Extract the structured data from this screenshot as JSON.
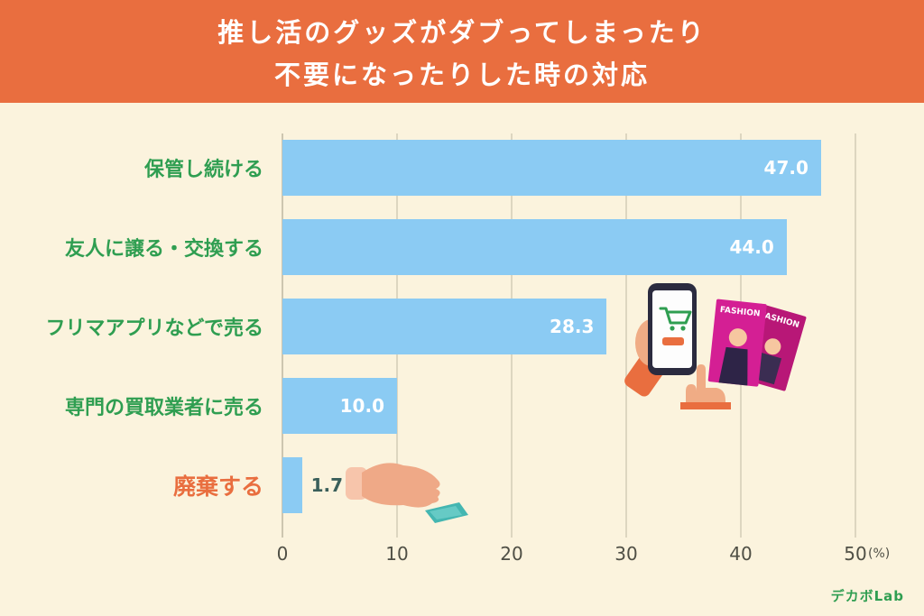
{
  "header": {
    "title_line1": "推し活のグッズがダブってしまったり",
    "title_line2": "不要になったりした時の対応",
    "bg_color": "#e96e3f",
    "text_color": "#ffffff"
  },
  "chart_data": {
    "type": "bar",
    "orientation": "horizontal",
    "categories": [
      "保管し続ける",
      "友人に譲る・交換する",
      "フリマアプリなどで売る",
      "専門の買取業者に売る",
      "廃棄する"
    ],
    "values": [
      47.0,
      44.0,
      28.3,
      10.0,
      1.7
    ],
    "value_labels": [
      "47.0",
      "44.0",
      "28.3",
      "10.0",
      "1.7"
    ],
    "xlim": [
      0,
      50
    ],
    "ticks": [
      0,
      10,
      20,
      30,
      40,
      50
    ],
    "unit_label": "(%)",
    "bar_color": "#8bcbf3",
    "label_color": "#2f9e51",
    "highlight_category": "廃棄する",
    "highlight_color": "#e96e3f",
    "value_text_color_inside": "#ffffff",
    "value_text_color_outside": "#3a5f5a",
    "background_color": "#fbf3dd",
    "legend": "none",
    "grid": "vertical"
  },
  "illustrations": [
    {
      "name": "shopping-phone-illustration",
      "magazine_label": "FASHION",
      "magazine_label2": "FASHION"
    },
    {
      "name": "discard-hand-illustration"
    }
  ],
  "footer": {
    "logo": "デカボLab"
  }
}
